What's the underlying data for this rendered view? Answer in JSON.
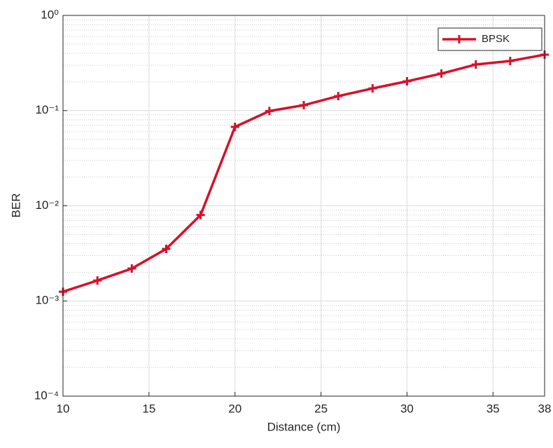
{
  "chart_data": {
    "type": "line",
    "xlabel": "Distance (cm)",
    "ylabel": "BER",
    "x": [
      10,
      12,
      14,
      16,
      18,
      20,
      22,
      24,
      26,
      28,
      30,
      32,
      34,
      36,
      38
    ],
    "series": [
      {
        "name": "BPSK",
        "color": "#d7102a",
        "values": [
          0.00125,
          0.00164,
          0.00219,
          0.00352,
          0.008,
          0.0674,
          0.099,
          0.114,
          0.142,
          0.171,
          0.203,
          0.245,
          0.305,
          0.332,
          0.387
        ]
      }
    ],
    "xlim": [
      10,
      38
    ],
    "xticks": [
      10,
      15,
      20,
      25,
      30,
      35,
      38
    ],
    "ylim": [
      0.0001,
      1
    ],
    "yticks": [
      {
        "value": 0.0001,
        "label": "10⁻⁴"
      },
      {
        "value": 0.001,
        "label": "10⁻³"
      },
      {
        "value": 0.01,
        "label": "10⁻²"
      },
      {
        "value": 0.1,
        "label": "10⁻¹"
      },
      {
        "value": 1,
        "label": "10⁰"
      }
    ],
    "ylog": true,
    "grid": true,
    "minor_grid": true,
    "legend": "upper right"
  }
}
